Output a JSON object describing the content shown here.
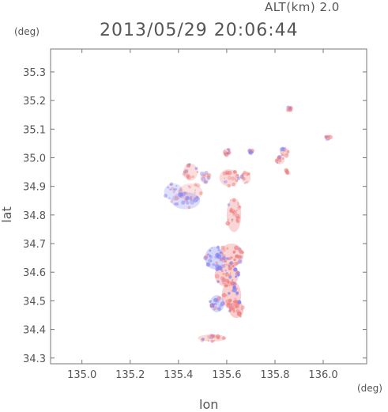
{
  "header": {
    "altitude_label": "ALT(km) 2.0",
    "timestamp": "2013/05/29 20:06:44",
    "y_unit": "(deg)",
    "x_unit": "(deg)"
  },
  "chart_data": {
    "type": "scatter",
    "title": "2013/05/29 20:06:44",
    "xlabel": "lon",
    "ylabel": "lat",
    "xlim": [
      134.87,
      136.18
    ],
    "ylim": [
      34.28,
      35.38
    ],
    "x_ticks": [
      "135.0",
      "135.2",
      "135.4",
      "135.6",
      "135.8",
      "136.0"
    ],
    "y_ticks": [
      "34.3",
      "34.4",
      "34.5",
      "34.6",
      "34.7",
      "34.8",
      "34.9",
      "35.0",
      "35.1",
      "35.2",
      "35.3"
    ],
    "grid": false,
    "colors": {
      "positive": "#f08080",
      "negative": "#8080f0",
      "frame": "#777777"
    },
    "clusters": [
      {
        "lon": 135.45,
        "lat": 34.95,
        "rx": 0.03,
        "ry": 0.03,
        "sign": "positive",
        "strength": 0.35
      },
      {
        "lon": 135.51,
        "lat": 34.93,
        "rx": 0.02,
        "ry": 0.02,
        "sign": "positive",
        "strength": 0.35
      },
      {
        "lon": 135.45,
        "lat": 34.88,
        "rx": 0.05,
        "ry": 0.03,
        "sign": "positive",
        "strength": 0.25
      },
      {
        "lon": 135.43,
        "lat": 34.85,
        "rx": 0.06,
        "ry": 0.03,
        "sign": "negative",
        "strength": 0.3
      },
      {
        "lon": 135.38,
        "lat": 34.88,
        "rx": 0.04,
        "ry": 0.03,
        "sign": "negative",
        "strength": 0.25
      },
      {
        "lon": 135.61,
        "lat": 34.93,
        "rx": 0.04,
        "ry": 0.03,
        "sign": "positive",
        "strength": 0.5
      },
      {
        "lon": 135.6,
        "lat": 35.02,
        "rx": 0.015,
        "ry": 0.012,
        "sign": "positive",
        "strength": 0.5
      },
      {
        "lon": 135.68,
        "lat": 34.93,
        "rx": 0.02,
        "ry": 0.02,
        "sign": "positive",
        "strength": 0.4
      },
      {
        "lon": 135.7,
        "lat": 35.02,
        "rx": 0.008,
        "ry": 0.008,
        "sign": "positive",
        "strength": 0.4
      },
      {
        "lon": 135.84,
        "lat": 35.02,
        "rx": 0.02,
        "ry": 0.015,
        "sign": "positive",
        "strength": 0.4
      },
      {
        "lon": 135.82,
        "lat": 34.99,
        "rx": 0.02,
        "ry": 0.012,
        "sign": "positive",
        "strength": 0.35
      },
      {
        "lon": 135.85,
        "lat": 34.95,
        "rx": 0.008,
        "ry": 0.01,
        "sign": "positive",
        "strength": 0.35
      },
      {
        "lon": 135.86,
        "lat": 35.17,
        "rx": 0.008,
        "ry": 0.008,
        "sign": "positive",
        "strength": 0.5
      },
      {
        "lon": 136.02,
        "lat": 35.07,
        "rx": 0.01,
        "ry": 0.01,
        "sign": "positive",
        "strength": 0.5
      },
      {
        "lon": 135.63,
        "lat": 34.8,
        "rx": 0.03,
        "ry": 0.06,
        "sign": "positive",
        "strength": 0.6
      },
      {
        "lon": 135.62,
        "lat": 34.66,
        "rx": 0.05,
        "ry": 0.04,
        "sign": "positive",
        "strength": 0.7
      },
      {
        "lon": 135.55,
        "lat": 34.65,
        "rx": 0.04,
        "ry": 0.04,
        "sign": "negative",
        "strength": 0.6
      },
      {
        "lon": 135.6,
        "lat": 34.59,
        "rx": 0.05,
        "ry": 0.04,
        "sign": "positive",
        "strength": 0.8
      },
      {
        "lon": 135.62,
        "lat": 34.52,
        "rx": 0.04,
        "ry": 0.05,
        "sign": "positive",
        "strength": 0.8
      },
      {
        "lon": 135.64,
        "lat": 34.47,
        "rx": 0.03,
        "ry": 0.03,
        "sign": "positive",
        "strength": 0.9
      },
      {
        "lon": 135.56,
        "lat": 34.49,
        "rx": 0.03,
        "ry": 0.03,
        "sign": "negative",
        "strength": 0.6
      },
      {
        "lon": 135.54,
        "lat": 34.37,
        "rx": 0.06,
        "ry": 0.012,
        "sign": "positive",
        "strength": 0.5
      }
    ]
  }
}
